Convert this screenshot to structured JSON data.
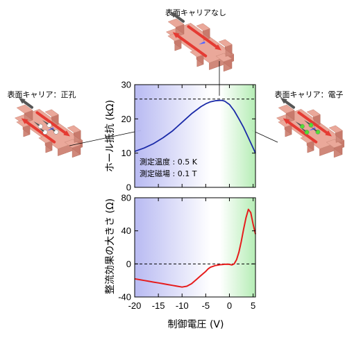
{
  "callouts": {
    "none": "表面キャリアなし",
    "holes": "表面キャリア：正孔",
    "electrons": "表面キャリア：電子"
  },
  "colors": {
    "hole_region": "#b8baf2",
    "electron_region": "#b5edb5",
    "top_curve": "#1a2aa8",
    "bottom_curve": "#e61c1c",
    "device_block": "#eaa89a",
    "current_arrow": "#e53b33",
    "field_arrow": "#555555",
    "hole_particle": "#ffffff",
    "electron_particle": "#55dd33",
    "spin_arrow": "#5566ff"
  },
  "chart_data": [
    {
      "type": "line",
      "ylabel": "ホール抵抗 (kΩ)",
      "xlim": [
        -20,
        5.5
      ],
      "ylim": [
        0,
        30
      ],
      "yticks": [
        "0",
        "10",
        "20",
        "30"
      ],
      "reference_line": 25.8,
      "annotations": [
        "測定温度 : 0.5 K",
        "測定磁場 : 0.1 T"
      ],
      "series": [
        {
          "x": [
            -20,
            -18,
            -16,
            -14,
            -12,
            -10,
            -8,
            -6,
            -5,
            -4,
            -3,
            -2,
            -1.5,
            -1,
            0,
            1,
            2,
            3,
            4,
            5,
            5.5
          ],
          "values": [
            10.5,
            11.5,
            12.8,
            14.5,
            16.5,
            19.0,
            21.5,
            23.6,
            24.4,
            25.0,
            25.3,
            25.4,
            25.4,
            25.2,
            24.2,
            22.4,
            20.0,
            17.5,
            14.5,
            11.5,
            10.0
          ]
        }
      ]
    },
    {
      "type": "line",
      "ylabel": "整流効果の大きさ (Ω)",
      "xlabel": "制御電圧 (V)",
      "xlim": [
        -20,
        5.5
      ],
      "ylim": [
        -40,
        80
      ],
      "xticks": [
        "-20",
        "-15",
        "-10",
        "-5",
        "0",
        "5"
      ],
      "yticks": [
        "-40",
        "0",
        "40",
        "80"
      ],
      "reference_line": 0,
      "series": [
        {
          "x": [
            -20,
            -19,
            -18,
            -17,
            -16,
            -15,
            -14,
            -13,
            -12,
            -11,
            -10,
            -9,
            -8,
            -7,
            -6,
            -5,
            -4.5,
            -4,
            -3.5,
            -3,
            -2.5,
            -2,
            -1.5,
            -1,
            -0.5,
            0,
            0.5,
            1,
            1.5,
            2,
            2.5,
            3,
            3.5,
            4,
            4.5,
            5,
            5.5
          ],
          "values": [
            -18,
            -19,
            -20,
            -21,
            -22,
            -23,
            -24,
            -25,
            -26,
            -27,
            -28,
            -27,
            -24,
            -19,
            -14,
            -9,
            -6,
            -4,
            -3,
            -2,
            -1.5,
            -1,
            -0.8,
            -0.5,
            -0.4,
            -0.6,
            -1.2,
            0,
            5,
            14,
            27,
            42,
            56,
            66,
            62,
            48,
            36
          ]
        }
      ]
    }
  ]
}
